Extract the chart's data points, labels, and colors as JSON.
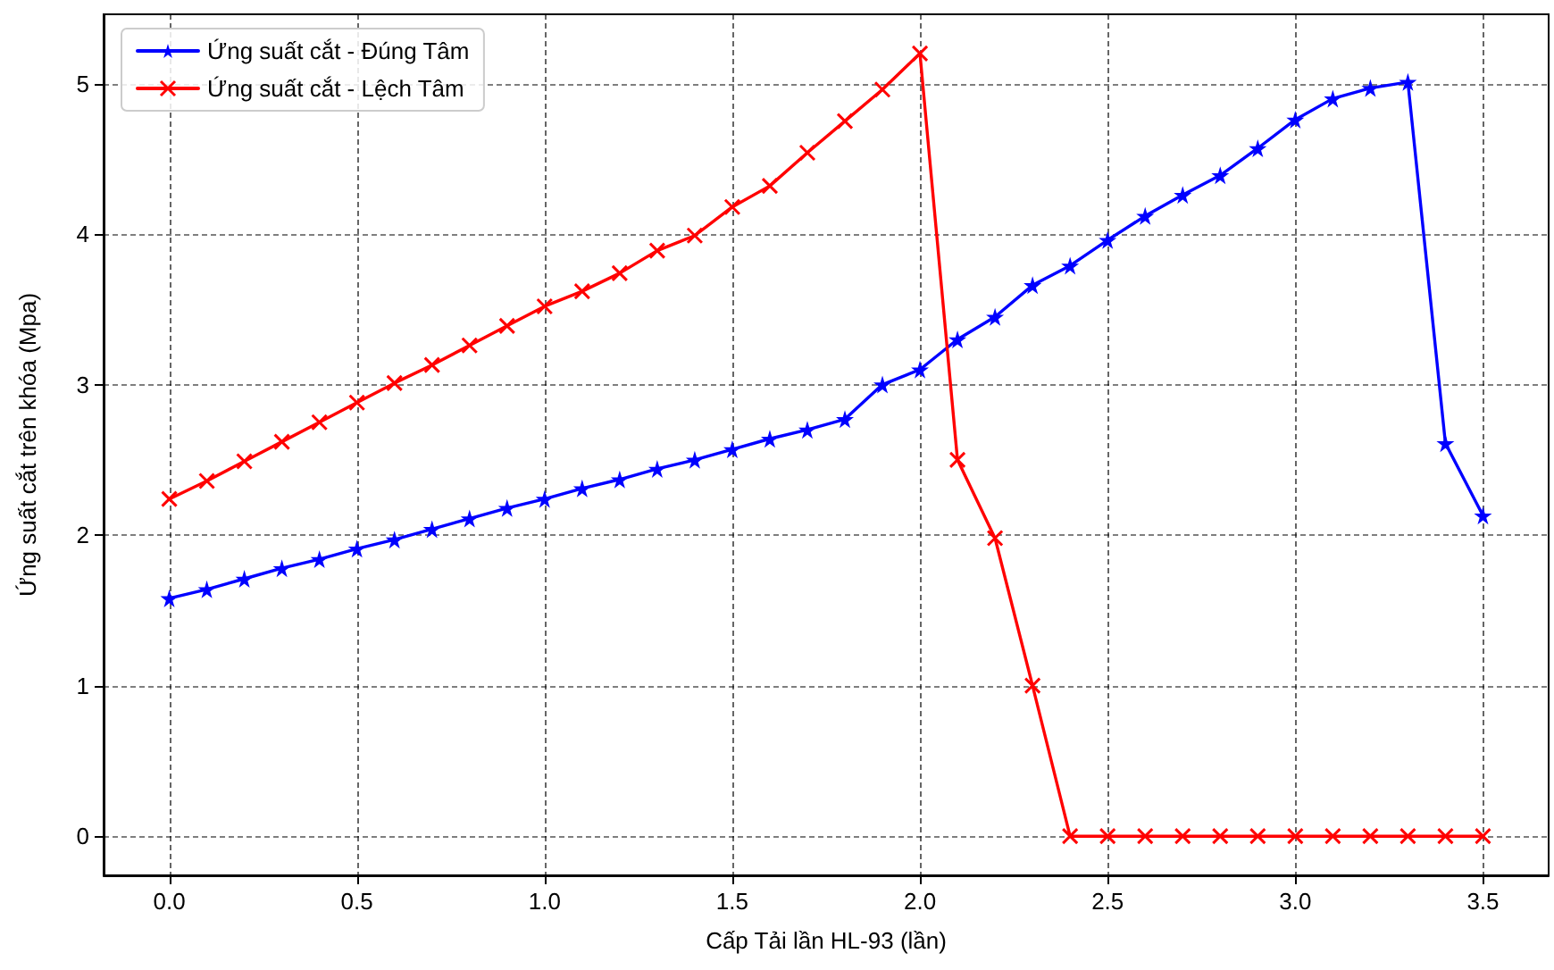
{
  "chart_data": {
    "type": "line",
    "xlabel": "Cấp Tải lần HL-93 (lần)",
    "ylabel": "Ứng suất cắt trên khóa (Mpa)",
    "x": [
      0,
      0.1,
      0.2,
      0.3,
      0.4,
      0.5,
      0.6,
      0.7,
      0.8,
      0.9,
      1.0,
      1.1,
      1.2,
      1.3,
      1.4,
      1.5,
      1.6,
      1.7,
      1.8,
      1.9,
      2.0,
      2.1,
      2.2,
      2.3,
      2.4,
      2.5,
      2.6,
      2.7,
      2.8,
      2.9,
      3.0,
      3.1,
      3.2,
      3.3,
      3.4,
      3.5
    ],
    "series": [
      {
        "name": "Ứng suất cắt - Đúng Tâm",
        "color": "#0000ff",
        "marker": "star",
        "values": [
          1.58,
          1.64,
          1.71,
          1.78,
          1.84,
          1.91,
          1.97,
          2.04,
          2.11,
          2.18,
          2.24,
          2.31,
          2.37,
          2.44,
          2.5,
          2.57,
          2.64,
          2.7,
          2.77,
          3.0,
          3.1,
          3.3,
          3.45,
          3.66,
          3.79,
          3.96,
          4.12,
          4.26,
          4.39,
          4.57,
          4.76,
          4.9,
          4.97,
          5.01,
          2.61,
          2.13
        ]
      },
      {
        "name": "Ứng suất cắt - Lệch Tâm",
        "color": "#ff0000",
        "marker": "cross",
        "values": [
          2.24,
          2.36,
          2.49,
          2.62,
          2.75,
          2.88,
          3.01,
          3.13,
          3.26,
          3.39,
          3.52,
          3.62,
          3.74,
          3.89,
          3.99,
          4.18,
          4.32,
          4.54,
          4.75,
          4.96,
          5.2,
          2.5,
          1.98,
          1.0,
          0,
          0,
          0,
          0,
          0,
          0,
          0,
          0,
          0,
          0,
          0,
          0
        ]
      }
    ],
    "xlim": [
      -0.175,
      3.675
    ],
    "ylim": [
      -0.26,
      5.46
    ],
    "xticks": [
      {
        "value": 0,
        "label": "0.0"
      },
      {
        "value": 0.5,
        "label": "0.5"
      },
      {
        "value": 1,
        "label": "1.0"
      },
      {
        "value": 1.5,
        "label": "1.5"
      },
      {
        "value": 2,
        "label": "2.0"
      },
      {
        "value": 2.5,
        "label": "2.5"
      },
      {
        "value": 3,
        "label": "3.0"
      },
      {
        "value": 3.5,
        "label": "3.5"
      }
    ],
    "yticks": [
      0,
      1,
      2,
      3,
      4,
      5
    ],
    "grid": true,
    "legend": "top left",
    "line_style": "solid"
  }
}
